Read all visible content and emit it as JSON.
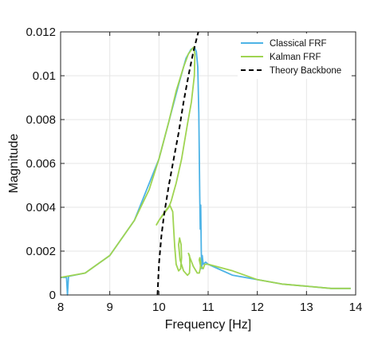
{
  "chart_data": {
    "type": "line",
    "title": "",
    "xlabel": "Frequency [Hz]",
    "ylabel": "Magnitude",
    "xlim": [
      8,
      14
    ],
    "ylim": [
      0,
      0.012
    ],
    "xticks": [
      8,
      9,
      10,
      11,
      12,
      13,
      14
    ],
    "xtick_labels": [
      "8",
      "9",
      "10",
      "11",
      "12",
      "13",
      "14"
    ],
    "yticks": [
      0,
      0.002,
      0.004,
      0.006,
      0.008,
      0.01,
      0.012
    ],
    "ytick_labels": [
      "0",
      "0.002",
      "0.004",
      "0.006",
      "0.008",
      "0.01",
      "0.012"
    ],
    "grid": true,
    "legend_position": "top-right",
    "series": [
      {
        "name": "Classical FRF",
        "color": "#4db3e6",
        "style": "solid",
        "x": [
          8.0,
          8.12,
          8.14,
          8.16,
          8.5,
          9.0,
          9.5,
          10.0,
          10.2,
          10.4,
          10.55,
          10.65,
          10.72,
          10.76,
          10.79,
          10.81,
          10.83,
          10.84,
          10.85,
          10.86,
          10.87,
          10.88,
          10.9,
          10.95,
          11.0,
          11.2,
          11.5,
          12.0,
          12.5,
          13.0,
          13.5,
          13.9
        ],
        "y": [
          0.0008,
          0.0008,
          0.0,
          0.00085,
          0.001,
          0.0018,
          0.0034,
          0.0062,
          0.0079,
          0.0096,
          0.0108,
          0.0112,
          0.0113,
          0.0111,
          0.0104,
          0.0083,
          0.0045,
          0.003,
          0.0041,
          0.002,
          0.0012,
          0.0018,
          0.0014,
          0.0015,
          0.0014,
          0.0012,
          0.0009,
          0.0007,
          0.0005,
          0.0004,
          0.0003,
          0.0003
        ]
      },
      {
        "name": "Kalman FRF",
        "color": "#9fd451",
        "style": "solid",
        "x": [
          8.0,
          8.5,
          9.0,
          9.5,
          9.8,
          10.0,
          10.2,
          10.35,
          10.5,
          10.6,
          10.7,
          10.73,
          10.72,
          10.66,
          10.58,
          10.52,
          10.46,
          10.4,
          10.35,
          10.3,
          10.25,
          10.2,
          10.1,
          10.0,
          9.95,
          10.0,
          10.12,
          10.22,
          10.28,
          10.3,
          10.32,
          10.35,
          10.4,
          10.44,
          10.46,
          10.45,
          10.42,
          10.4,
          10.43,
          10.5,
          10.58,
          10.62,
          10.63,
          10.62,
          10.6,
          10.63,
          10.7,
          10.78,
          10.82,
          10.84,
          10.85,
          10.83,
          10.82,
          10.85,
          10.9,
          10.93,
          10.95,
          11.0,
          11.5,
          12.0,
          12.5,
          13.0,
          13.5,
          13.9
        ],
        "y": [
          0.0008,
          0.001,
          0.0018,
          0.0034,
          0.0048,
          0.0062,
          0.0079,
          0.0093,
          0.0104,
          0.011,
          0.0113,
          0.011,
          0.01,
          0.0088,
          0.0078,
          0.007,
          0.0062,
          0.0056,
          0.0051,
          0.0047,
          0.0043,
          0.004,
          0.0037,
          0.0034,
          0.0032,
          0.0034,
          0.0038,
          0.0041,
          0.0038,
          0.003,
          0.0022,
          0.0014,
          0.0011,
          0.0012,
          0.0017,
          0.0023,
          0.0026,
          0.0023,
          0.0016,
          0.0011,
          0.0009,
          0.001,
          0.0014,
          0.0018,
          0.0019,
          0.0017,
          0.0013,
          0.001,
          0.001,
          0.0012,
          0.0015,
          0.0017,
          0.0016,
          0.0013,
          0.0012,
          0.0014,
          0.0014,
          0.0014,
          0.0011,
          0.0007,
          0.0005,
          0.0004,
          0.0003,
          0.0003
        ]
      },
      {
        "name": "Theory Backbone",
        "color": "#000000",
        "style": "dashed",
        "x": [
          9.97,
          10.0,
          10.05,
          10.1,
          10.2,
          10.3,
          10.4,
          10.5,
          10.6,
          10.7,
          10.8
        ],
        "y": [
          0.0,
          0.0014,
          0.0027,
          0.0036,
          0.005,
          0.0062,
          0.0074,
          0.0088,
          0.01,
          0.0111,
          0.012
        ]
      }
    ]
  }
}
